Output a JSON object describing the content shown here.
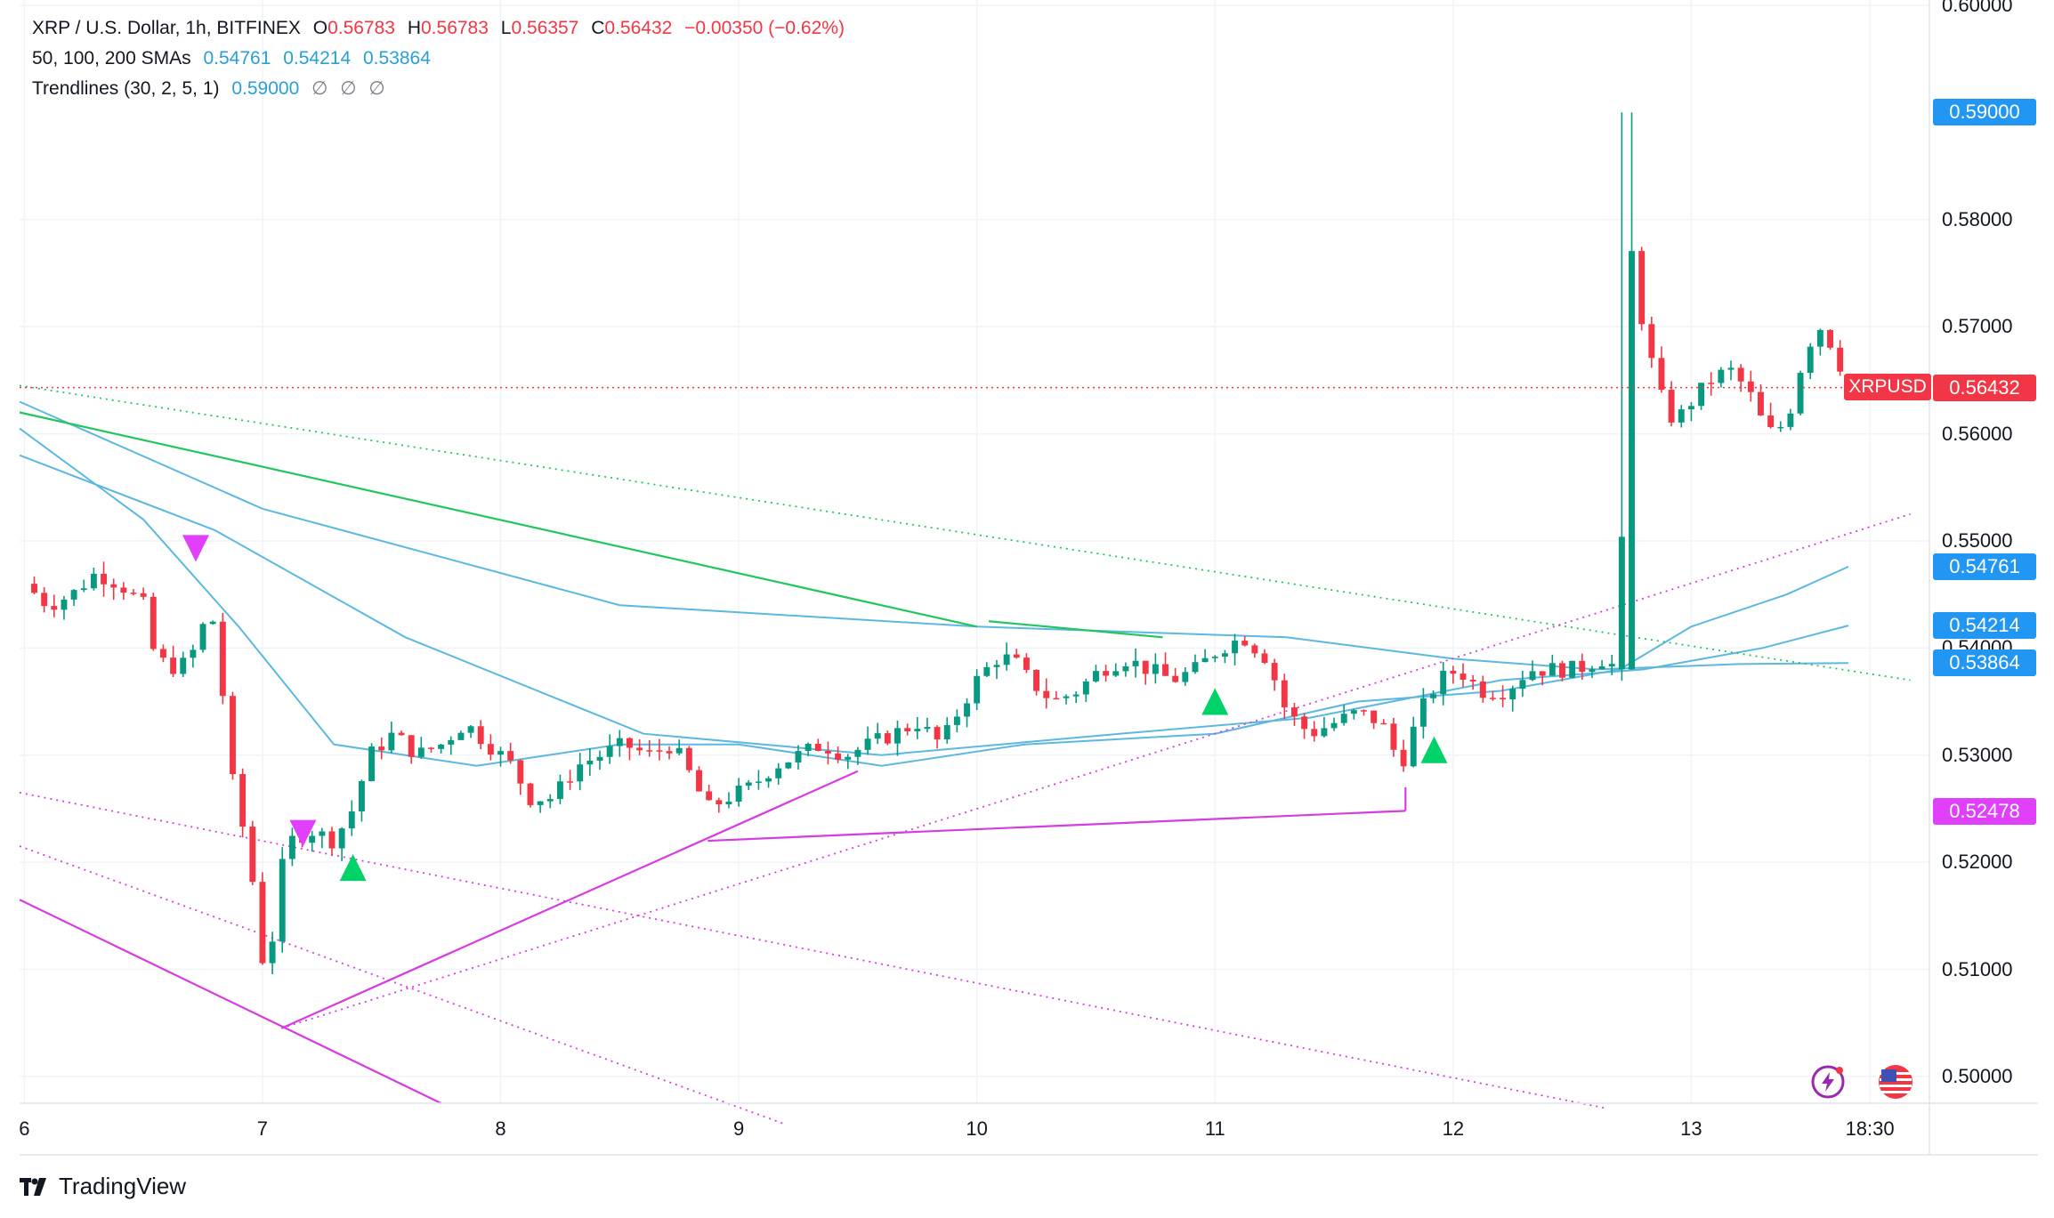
{
  "legend": {
    "symbol": "XRP / U.S. Dollar, 1h, BITFINEX",
    "open_label": "O",
    "open": "0.56783",
    "high_label": "H",
    "high": "0.56783",
    "low_label": "L",
    "low": "0.56357",
    "close_label": "C",
    "close": "0.56432",
    "change": "−0.00350 (−0.62%)",
    "sma_label": "50, 100, 200 SMAs",
    "sma50": "0.54761",
    "sma100": "0.54214",
    "sma200": "0.53864",
    "trend_label": "Trendlines (30, 2, 5, 1)",
    "trend_value": "0.59000",
    "trend_na1": "∅",
    "trend_na2": "∅",
    "trend_na3": "∅"
  },
  "price_tags": {
    "trend_high": "0.59000",
    "sma50": "0.54761",
    "sma100": "0.54214",
    "sma200": "0.53864",
    "trend_low": "0.52478",
    "last": "0.56432",
    "symbol": "XRPUSD"
  },
  "brand": {
    "name": "TradingView"
  },
  "colors": {
    "up": "#089981",
    "down": "#f23645",
    "sma": "#5cb8e0",
    "trend_green": "#22c55e",
    "trend_magenta": "#d63ce0",
    "grid": "#f0f3fa"
  },
  "chart_data": {
    "type": "candlestick",
    "timeframe": "1h",
    "y_ticks": [
      "0.50000",
      "0.51000",
      "0.52000",
      "0.53000",
      "0.54000",
      "0.55000",
      "0.56000",
      "0.57000",
      "0.58000",
      "0.60000"
    ],
    "y_tick_values": [
      0.5,
      0.51,
      0.52,
      0.53,
      0.54,
      0.55,
      0.56,
      0.57,
      0.58,
      0.6
    ],
    "x_labels": [
      {
        "t": 0.0,
        "label": "6"
      },
      {
        "t": 1.0,
        "label": "7"
      },
      {
        "t": 2.0,
        "label": "8"
      },
      {
        "t": 3.0,
        "label": "9"
      },
      {
        "t": 4.0,
        "label": "10"
      },
      {
        "t": 5.0,
        "label": "11"
      },
      {
        "t": 6.0,
        "label": "12"
      },
      {
        "t": 7.0,
        "label": "13"
      },
      {
        "t": 7.75,
        "label": "18:30"
      }
    ],
    "ylim": [
      0.4975,
      0.6005
    ],
    "xlim": [
      -0.02,
      8.0
    ],
    "last_price": 0.56432,
    "close_path": [
      [
        0.0,
        0.546
      ],
      [
        0.1,
        0.544
      ],
      [
        0.2,
        0.545
      ],
      [
        0.3,
        0.547
      ],
      [
        0.4,
        0.546
      ],
      [
        0.5,
        0.544
      ],
      [
        0.55,
        0.539
      ],
      [
        0.65,
        0.538
      ],
      [
        0.72,
        0.54
      ],
      [
        0.78,
        0.544
      ],
      [
        0.82,
        0.539
      ],
      [
        0.86,
        0.529
      ],
      [
        0.9,
        0.525
      ],
      [
        0.94,
        0.521
      ],
      [
        0.98,
        0.515
      ],
      [
        1.02,
        0.507
      ],
      [
        1.06,
        0.518
      ],
      [
        1.12,
        0.522
      ],
      [
        1.2,
        0.523
      ],
      [
        1.3,
        0.522
      ],
      [
        1.38,
        0.525
      ],
      [
        1.45,
        0.53
      ],
      [
        1.55,
        0.532
      ],
      [
        1.65,
        0.53
      ],
      [
        1.75,
        0.531
      ],
      [
        1.85,
        0.533
      ],
      [
        1.95,
        0.531
      ],
      [
        2.05,
        0.529
      ],
      [
        2.12,
        0.526
      ],
      [
        2.22,
        0.526
      ],
      [
        2.32,
        0.529
      ],
      [
        2.42,
        0.53
      ],
      [
        2.52,
        0.531
      ],
      [
        2.62,
        0.53
      ],
      [
        2.72,
        0.531
      ],
      [
        2.8,
        0.528
      ],
      [
        2.87,
        0.525
      ],
      [
        2.95,
        0.526
      ],
      [
        3.05,
        0.527
      ],
      [
        3.15,
        0.529
      ],
      [
        3.25,
        0.53
      ],
      [
        3.35,
        0.531
      ],
      [
        3.45,
        0.53
      ],
      [
        3.55,
        0.531
      ],
      [
        3.65,
        0.532
      ],
      [
        3.75,
        0.533
      ],
      [
        3.85,
        0.531
      ],
      [
        3.92,
        0.534
      ],
      [
        4.0,
        0.537
      ],
      [
        4.08,
        0.539
      ],
      [
        4.15,
        0.539
      ],
      [
        4.22,
        0.537
      ],
      [
        4.32,
        0.535
      ],
      [
        4.42,
        0.536
      ],
      [
        4.52,
        0.538
      ],
      [
        4.62,
        0.539
      ],
      [
        4.72,
        0.538
      ],
      [
        4.82,
        0.537
      ],
      [
        4.92,
        0.538
      ],
      [
        5.02,
        0.54
      ],
      [
        5.12,
        0.541
      ],
      [
        5.22,
        0.539
      ],
      [
        5.3,
        0.534
      ],
      [
        5.4,
        0.532
      ],
      [
        5.5,
        0.533
      ],
      [
        5.6,
        0.534
      ],
      [
        5.7,
        0.533
      ],
      [
        5.78,
        0.529
      ],
      [
        5.86,
        0.534
      ],
      [
        5.94,
        0.537
      ],
      [
        6.02,
        0.538
      ],
      [
        6.12,
        0.536
      ],
      [
        6.22,
        0.536
      ],
      [
        6.32,
        0.538
      ],
      [
        6.42,
        0.538
      ],
      [
        6.52,
        0.538
      ],
      [
        6.62,
        0.539
      ],
      [
        6.7,
        0.538
      ],
      [
        6.73,
        0.58
      ],
      [
        6.78,
        0.572
      ],
      [
        6.86,
        0.564
      ],
      [
        6.93,
        0.561
      ],
      [
        7.0,
        0.563
      ],
      [
        7.08,
        0.565
      ],
      [
        7.16,
        0.566
      ],
      [
        7.24,
        0.564
      ],
      [
        7.32,
        0.56
      ],
      [
        7.4,
        0.561
      ],
      [
        7.48,
        0.568
      ],
      [
        7.54,
        0.57
      ],
      [
        7.6,
        0.568
      ],
      [
        7.66,
        0.5643
      ]
    ],
    "sma_series": [
      {
        "points": [
          [
            -0.02,
            0.563
          ],
          [
            1.0,
            0.553
          ],
          [
            2.5,
            0.544
          ],
          [
            4.0,
            0.542
          ],
          [
            5.3,
            0.541
          ],
          [
            6.0,
            0.539
          ],
          [
            6.6,
            0.538
          ],
          [
            7.2,
            0.5385
          ],
          [
            7.66,
            0.5386
          ]
        ]
      },
      {
        "points": [
          [
            -0.02,
            0.558
          ],
          [
            0.8,
            0.551
          ],
          [
            1.6,
            0.541
          ],
          [
            2.6,
            0.532
          ],
          [
            3.6,
            0.53
          ],
          [
            4.6,
            0.532
          ],
          [
            5.4,
            0.5335
          ],
          [
            6.2,
            0.537
          ],
          [
            6.8,
            0.538
          ],
          [
            7.3,
            0.54
          ],
          [
            7.66,
            0.5421
          ]
        ]
      },
      {
        "points": [
          [
            -0.02,
            0.5605
          ],
          [
            0.5,
            0.552
          ],
          [
            0.9,
            0.542
          ],
          [
            1.3,
            0.531
          ],
          [
            1.9,
            0.529
          ],
          [
            2.5,
            0.531
          ],
          [
            3.0,
            0.531
          ],
          [
            3.6,
            0.529
          ],
          [
            4.2,
            0.531
          ],
          [
            5.0,
            0.532
          ],
          [
            5.6,
            0.535
          ],
          [
            6.2,
            0.536
          ],
          [
            6.7,
            0.538
          ],
          [
            7.0,
            0.542
          ],
          [
            7.4,
            0.545
          ],
          [
            7.66,
            0.5476
          ]
        ]
      }
    ],
    "trendlines": [
      {
        "style": "solid",
        "color": "green",
        "points": [
          [
            -0.02,
            0.562
          ],
          [
            4.0,
            0.542
          ]
        ]
      },
      {
        "style": "solid",
        "color": "green",
        "points": [
          [
            4.05,
            0.5425
          ],
          [
            4.78,
            0.541
          ]
        ]
      },
      {
        "style": "dotted",
        "color": "green",
        "points": [
          [
            -0.02,
            0.5645
          ],
          [
            7.92,
            0.537
          ]
        ]
      },
      {
        "style": "solid",
        "color": "magenta",
        "points": [
          [
            -0.02,
            0.5165
          ],
          [
            1.75,
            0.4975
          ]
        ]
      },
      {
        "style": "dotted",
        "color": "magenta",
        "points": [
          [
            -0.02,
            0.5215
          ],
          [
            3.2,
            0.4955
          ]
        ]
      },
      {
        "style": "dotted",
        "color": "magenta",
        "points": [
          [
            -0.02,
            0.5265
          ],
          [
            6.65,
            0.497
          ]
        ]
      },
      {
        "style": "solid",
        "color": "magenta",
        "points": [
          [
            1.08,
            0.5045
          ],
          [
            3.5,
            0.5285
          ]
        ]
      },
      {
        "style": "dotted",
        "color": "magenta",
        "points": [
          [
            1.08,
            0.5045
          ],
          [
            7.92,
            0.5525
          ]
        ]
      },
      {
        "style": "solid",
        "color": "magenta",
        "points": [
          [
            2.87,
            0.522
          ],
          [
            5.8,
            0.5248
          ]
        ]
      },
      {
        "style": "solid",
        "color": "magenta",
        "points": [
          [
            5.8,
            0.5248
          ],
          [
            5.8,
            0.527
          ]
        ]
      }
    ],
    "markers": [
      {
        "type": "down",
        "t": 0.72,
        "price": 0.5493
      },
      {
        "type": "down",
        "t": 1.17,
        "price": 0.5227
      },
      {
        "type": "up",
        "t": 1.38,
        "price": 0.5195
      },
      {
        "type": "up",
        "t": 5.0,
        "price": 0.535
      },
      {
        "type": "up",
        "t": 5.92,
        "price": 0.5305
      }
    ]
  }
}
